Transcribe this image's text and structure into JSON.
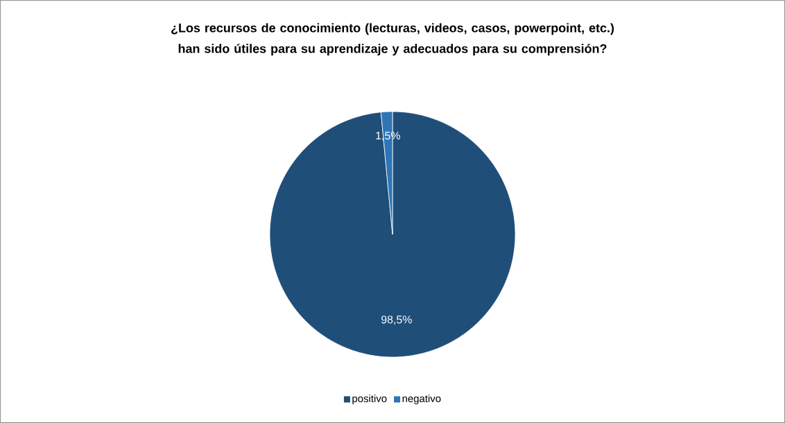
{
  "chart_data": {
    "type": "pie",
    "title": "¿Los recursos de conocimiento (lecturas, videos, casos, powerpoint, etc.) han sido útiles para su aprendizaje y adecuados para su comprensión?",
    "categories": [
      "positivo",
      "negativo"
    ],
    "values": [
      98.5,
      1.5
    ],
    "colors": [
      "#1f4e79",
      "#2e75b6"
    ],
    "value_labels": [
      "98,5%",
      "1,5%"
    ],
    "legend": "bottom"
  }
}
